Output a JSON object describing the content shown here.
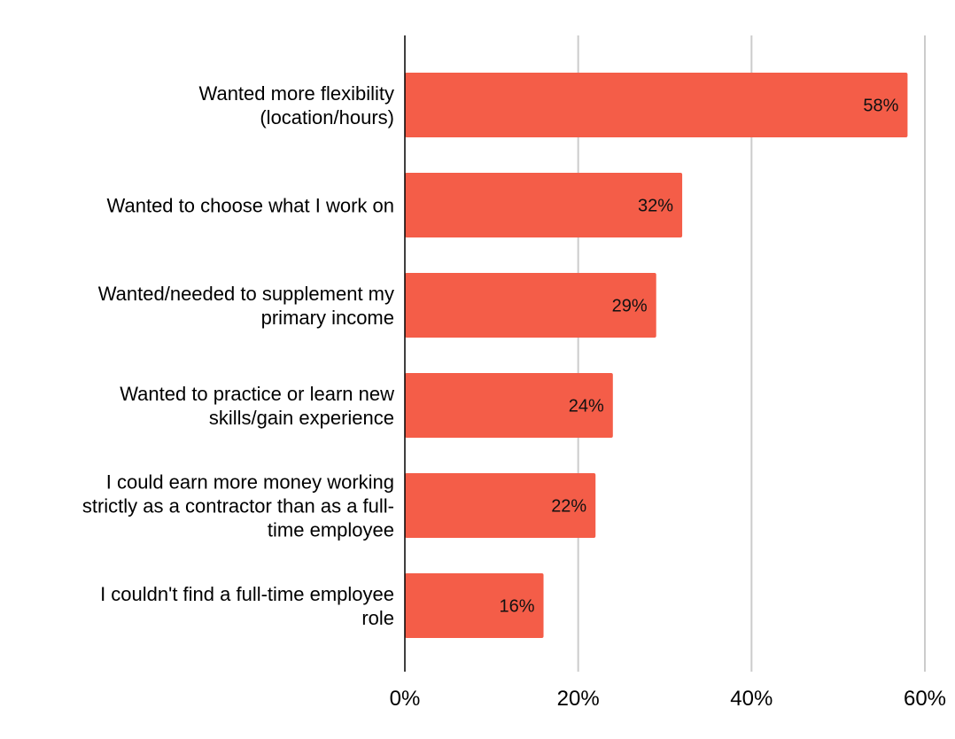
{
  "chart_data": {
    "type": "bar",
    "orientation": "horizontal",
    "categories": [
      [
        "Wanted more flexibility",
        "(location/hours)"
      ],
      [
        "Wanted to choose what I work on"
      ],
      [
        "Wanted/needed to supplement my",
        "primary income"
      ],
      [
        "Wanted to practice or learn new",
        "skills/gain experience"
      ],
      [
        "I could earn more money working",
        "strictly as a contractor than as a full-",
        "time employee"
      ],
      [
        "I couldn't find a full-time employee",
        "role"
      ]
    ],
    "values": [
      58,
      32,
      29,
      24,
      22,
      16
    ],
    "data_labels": [
      "58%",
      "32%",
      "29%",
      "24%",
      "22%",
      "16%"
    ],
    "xlim": [
      0,
      60
    ],
    "x_ticks": [
      0,
      20,
      40,
      60
    ],
    "x_tick_labels": [
      "0%",
      "20%",
      "40%",
      "60%"
    ],
    "bar_color": "#f45d48",
    "grid": true,
    "legend": "none"
  }
}
